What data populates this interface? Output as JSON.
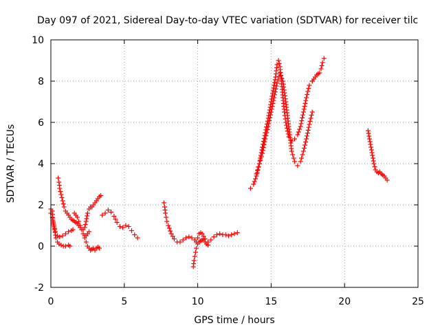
{
  "chart_data": {
    "type": "scatter",
    "title": "Day 097 of 2021, Sidereal Day-to-day VTEC variation (SDTVAR) for receiver tilc",
    "xlabel": "GPS time / hours",
    "ylabel": "SDTVAR / TECUs",
    "xlim": [
      0,
      25
    ],
    "ylim": [
      -2,
      10
    ],
    "x_ticks": [
      0,
      5,
      10,
      15,
      20,
      25
    ],
    "y_ticks": [
      -2,
      0,
      2,
      4,
      6,
      8,
      10
    ],
    "grid": true,
    "marker": "+",
    "marker_color": "#ff0000",
    "series": [
      {
        "segments": [
          {
            "x": [
              0.0,
              0.1,
              0.15,
              0.25,
              0.35,
              0.45,
              0.55,
              0.7,
              0.85,
              1.0,
              1.2,
              1.3
            ],
            "y": [
              1.8,
              1.7,
              1.2,
              0.8,
              0.4,
              0.2,
              0.1,
              0.05,
              0.0,
              0.0,
              0.05,
              0.0
            ]
          },
          {
            "x": [
              0.0,
              0.1,
              0.2,
              0.3,
              0.45,
              0.6,
              0.8,
              1.0,
              1.2,
              1.4,
              1.5
            ],
            "y": [
              1.6,
              1.4,
              1.0,
              0.7,
              0.5,
              0.45,
              0.5,
              0.6,
              0.7,
              0.75,
              0.8
            ]
          },
          {
            "x": [
              0.5,
              0.55,
              0.6,
              0.7,
              0.8,
              0.9,
              1.0,
              1.1,
              1.2,
              1.3,
              1.4,
              1.5,
              1.6,
              1.7,
              1.8,
              1.9,
              2.0
            ],
            "y": [
              3.3,
              3.1,
              2.8,
              2.5,
              2.2,
              1.9,
              1.7,
              1.6,
              1.5,
              1.4,
              1.3,
              1.25,
              1.2,
              1.15,
              1.1,
              1.0,
              0.9
            ]
          },
          {
            "x": [
              1.6,
              1.7,
              1.8,
              1.9,
              2.0,
              2.1,
              2.2,
              2.3,
              2.4,
              2.5,
              2.6
            ],
            "y": [
              1.6,
              1.5,
              1.4,
              1.2,
              1.0,
              0.8,
              0.6,
              0.5,
              0.5,
              0.6,
              0.7
            ]
          },
          {
            "x": [
              2.2,
              2.3,
              2.4,
              2.5,
              2.6,
              2.7,
              2.8,
              2.9,
              3.0,
              3.1,
              3.2,
              3.3,
              3.4
            ],
            "y": [
              0.8,
              0.9,
              1.2,
              1.6,
              1.8,
              1.9,
              1.9,
              2.0,
              2.1,
              2.2,
              2.3,
              2.4,
              2.45
            ]
          },
          {
            "x": [
              2.3,
              2.4,
              2.5,
              2.6,
              2.7,
              2.8,
              2.9,
              3.0,
              3.1,
              3.2,
              3.3
            ],
            "y": [
              0.4,
              0.2,
              0.0,
              -0.1,
              -0.2,
              -0.15,
              -0.1,
              -0.2,
              -0.1,
              -0.05,
              -0.1
            ]
          },
          {
            "x": [
              3.5,
              3.7,
              3.9,
              4.1,
              4.3,
              4.5,
              4.7,
              4.9,
              5.1,
              5.3,
              5.5,
              5.7,
              5.9
            ],
            "y": [
              1.5,
              1.6,
              1.75,
              1.65,
              1.45,
              1.15,
              0.95,
              0.9,
              1.0,
              0.95,
              0.75,
              0.55,
              0.4
            ]
          },
          {
            "x": [
              7.7,
              7.75,
              7.8,
              7.85,
              7.9,
              8.0,
              8.2,
              8.4,
              8.6,
              8.8,
              9.0,
              9.2,
              9.4,
              9.6,
              9.8
            ],
            "y": [
              2.1,
              1.9,
              1.6,
              1.4,
              1.2,
              1.0,
              0.6,
              0.35,
              0.2,
              0.2,
              0.3,
              0.4,
              0.45,
              0.4,
              0.3
            ]
          },
          {
            "x": [
              9.7,
              9.75,
              9.8,
              9.85,
              9.9,
              10.0,
              10.1,
              10.2,
              10.3,
              10.4,
              10.5,
              10.6,
              10.7
            ],
            "y": [
              -1.0,
              -0.7,
              -0.5,
              -0.3,
              -0.1,
              0.1,
              0.2,
              0.25,
              0.3,
              0.35,
              0.2,
              0.1,
              0.05
            ]
          },
          {
            "x": [
              9.9,
              10.0,
              10.1,
              10.2,
              10.3,
              10.5,
              10.7,
              10.9,
              11.1,
              11.3,
              11.5,
              11.7,
              11.9,
              12.1,
              12.3,
              12.5,
              12.7
            ],
            "y": [
              0.2,
              0.4,
              0.6,
              0.65,
              0.6,
              0.35,
              0.2,
              0.3,
              0.45,
              0.55,
              0.6,
              0.55,
              0.55,
              0.5,
              0.55,
              0.6,
              0.65
            ]
          },
          {
            "x": [
              13.6,
              13.8,
              14.0,
              14.2,
              14.4,
              14.6,
              14.8,
              15.0,
              15.2,
              15.3,
              15.4,
              15.5,
              15.6,
              15.7,
              15.8,
              15.9,
              16.0,
              16.2,
              16.4,
              16.6,
              16.8,
              17.0,
              17.2,
              17.4,
              17.6,
              17.8
            ],
            "y": [
              2.8,
              3.0,
              3.4,
              4.0,
              4.8,
              5.5,
              6.2,
              7.0,
              7.8,
              8.2,
              8.8,
              9.0,
              8.7,
              8.0,
              7.2,
              6.5,
              6.0,
              5.3,
              5.1,
              5.2,
              5.4,
              5.8,
              6.5,
              7.2,
              7.8,
              8.0
            ]
          },
          {
            "x": [
              14.0,
              14.2,
              14.4,
              14.6,
              14.8,
              15.0,
              15.2,
              15.4,
              15.6,
              15.8,
              16.0,
              16.2,
              16.4,
              16.6,
              16.8,
              17.0,
              17.2,
              17.4,
              17.6,
              17.8
            ],
            "y": [
              3.5,
              4.0,
              4.5,
              5.2,
              5.8,
              6.5,
              7.2,
              7.9,
              8.4,
              8.0,
              7.0,
              5.8,
              4.6,
              4.1,
              3.9,
              4.1,
              4.6,
              5.2,
              5.9,
              6.5
            ]
          },
          {
            "x": [
              17.8,
              17.9,
              18.0,
              18.1,
              18.2,
              18.3,
              18.4,
              18.5,
              18.6
            ],
            "y": [
              8.0,
              8.1,
              8.2,
              8.3,
              8.35,
              8.4,
              8.6,
              8.9,
              9.1
            ]
          },
          {
            "x": [
              21.6,
              21.7,
              21.8,
              21.9,
              22.0,
              22.1,
              22.2,
              22.3,
              22.4,
              22.5,
              22.6,
              22.7,
              22.8,
              22.9
            ],
            "y": [
              5.6,
              5.2,
              4.8,
              4.4,
              4.0,
              3.7,
              3.6,
              3.55,
              3.6,
              3.5,
              3.45,
              3.4,
              3.3,
              3.2
            ]
          }
        ]
      }
    ]
  }
}
